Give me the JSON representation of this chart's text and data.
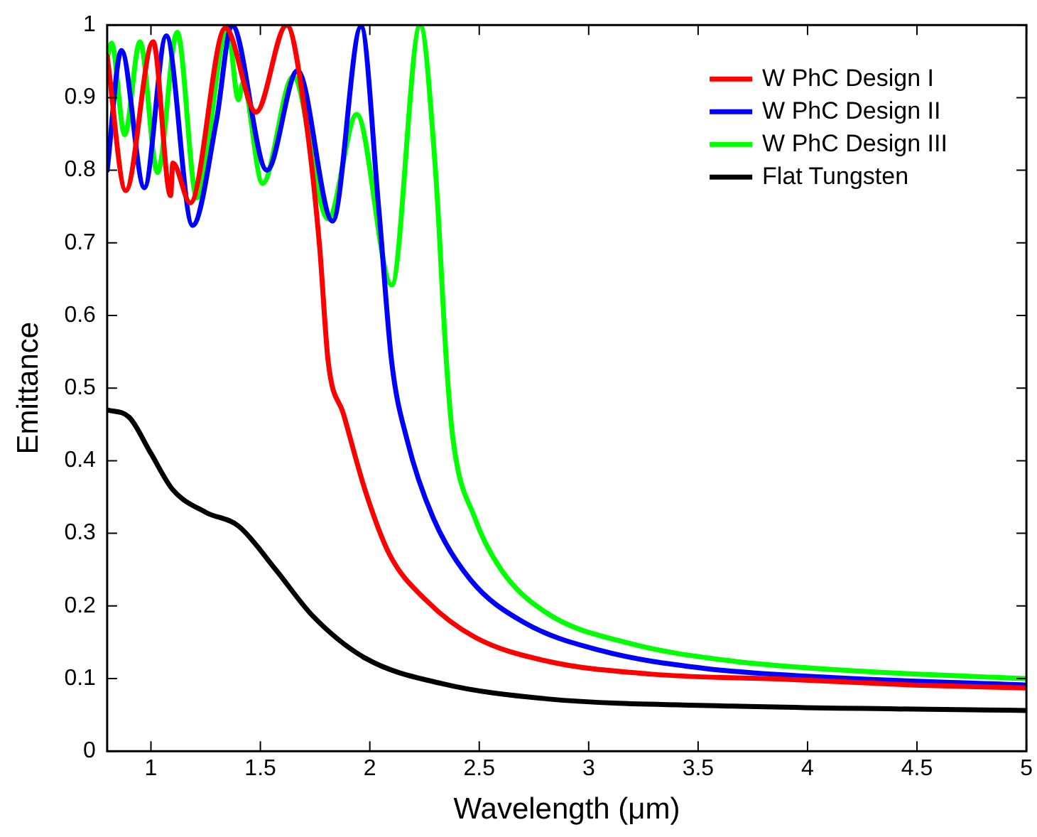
{
  "chart_data": {
    "type": "line",
    "xlabel": "Wavelength (μm)",
    "ylabel": "Emittance",
    "xlim": [
      0.8,
      5
    ],
    "ylim": [
      0,
      1
    ],
    "xticks": [
      1,
      1.5,
      2,
      2.5,
      3,
      3.5,
      4,
      4.5,
      5
    ],
    "yticks": [
      0,
      0.1,
      0.2,
      0.3,
      0.4,
      0.5,
      0.6,
      0.7,
      0.8,
      0.9,
      1
    ],
    "grid": false,
    "legend": "top right",
    "marker": "none",
    "line_style": "solid",
    "series": [
      {
        "name": "W PhC Design I",
        "color": "#ff0000",
        "x": [
          0.8,
          0.885,
          1.01,
          1.09,
          1.1,
          1.18,
          1.34,
          1.48,
          1.62,
          1.71,
          1.77,
          1.81,
          1.88,
          1.98,
          2.09,
          2.26,
          2.48,
          2.81,
          3.29,
          3.9,
          4.49,
          5
        ],
        "values": [
          0.957,
          0.772,
          0.977,
          0.765,
          0.81,
          0.755,
          0.996,
          0.88,
          1,
          0.865,
          0.697,
          0.536,
          0.464,
          0.358,
          0.271,
          0.207,
          0.157,
          0.124,
          0.106,
          0.099,
          0.091,
          0.087
        ]
      },
      {
        "name": "W PhC Design II",
        "color": "#0000ff",
        "x": [
          0.8,
          0.865,
          0.97,
          1.07,
          1.19,
          1.3,
          1.37,
          1.53,
          1.67,
          1.83,
          1.96,
          2.04,
          2.1,
          2.17,
          2.29,
          2.46,
          2.7,
          3.05,
          3.53,
          4.14,
          5
        ],
        "values": [
          0.8,
          0.965,
          0.776,
          0.985,
          0.724,
          0.87,
          1,
          0.8,
          0.937,
          0.73,
          0.998,
          0.75,
          0.536,
          0.429,
          0.321,
          0.236,
          0.178,
          0.139,
          0.114,
          0.101,
          0.091
        ]
      },
      {
        "name": "W PhC Design III",
        "color": "#00ff00",
        "x": [
          0.8,
          0.82,
          0.88,
          0.95,
          1.03,
          1.12,
          1.21,
          1.35,
          1.4,
          1.42,
          1.51,
          1.65,
          1.81,
          1.94,
          2.1,
          2.23,
          2.3,
          2.35,
          2.38,
          2.48,
          2.6,
          2.81,
          3.18,
          3.66,
          4.25,
          5
        ],
        "values": [
          0.955,
          0.975,
          0.849,
          0.977,
          0.797,
          0.99,
          0.762,
          0.996,
          0.897,
          0.92,
          0.782,
          0.929,
          0.733,
          0.877,
          0.642,
          1,
          0.8,
          0.536,
          0.43,
          0.321,
          0.25,
          0.19,
          0.149,
          0.124,
          0.11,
          0.1
        ]
      },
      {
        "name": "Flat Tungsten",
        "color": "#000000",
        "x": [
          0.8,
          0.9,
          1,
          1.1,
          1.25,
          1.4,
          1.57,
          1.74,
          1.98,
          2.33,
          2.81,
          3.66,
          5
        ],
        "values": [
          0.47,
          0.46,
          0.41,
          0.36,
          0.329,
          0.31,
          0.25,
          0.186,
          0.128,
          0.093,
          0.072,
          0.062,
          0.056
        ]
      }
    ]
  }
}
